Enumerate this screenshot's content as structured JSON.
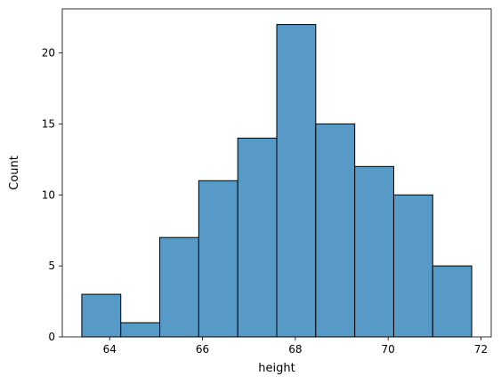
{
  "chart_data": {
    "type": "bar",
    "subtype": "histogram",
    "xlabel": "height",
    "ylabel": "Count",
    "bins": [
      {
        "start": 63.4,
        "end": 64.24,
        "count": 3
      },
      {
        "start": 64.24,
        "end": 65.08,
        "count": 1
      },
      {
        "start": 65.08,
        "end": 65.92,
        "count": 7
      },
      {
        "start": 65.92,
        "end": 66.76,
        "count": 11
      },
      {
        "start": 66.76,
        "end": 67.6,
        "count": 14
      },
      {
        "start": 67.6,
        "end": 68.44,
        "count": 22
      },
      {
        "start": 68.44,
        "end": 69.28,
        "count": 15
      },
      {
        "start": 69.28,
        "end": 70.12,
        "count": 12
      },
      {
        "start": 70.12,
        "end": 70.96,
        "count": 10
      },
      {
        "start": 70.96,
        "end": 71.8,
        "count": 5
      }
    ],
    "xlim": [
      62.98,
      72.22
    ],
    "ylim": [
      0,
      23.1
    ],
    "xticks": [
      64,
      66,
      68,
      70,
      72
    ],
    "yticks": [
      0,
      5,
      10,
      15,
      20
    ],
    "bar_color": "#5799c7",
    "edge_color": "#000000",
    "grid": false,
    "legend": "none"
  }
}
